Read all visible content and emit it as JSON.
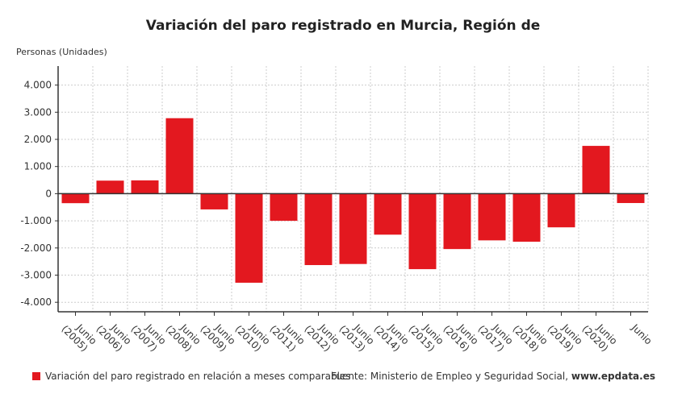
{
  "chart_data": {
    "type": "bar",
    "title": "Variación del paro registrado en Murcia, Región de",
    "ylabel": "Personas (Unidades)",
    "xlabel": "",
    "categories": [
      "Junio (2005)",
      "Junio (2006)",
      "Junio (2007)",
      "Junio (2008)",
      "Junio (2009)",
      "Junio (2010)",
      "Junio (2011)",
      "Junio (2012)",
      "Junio (2013)",
      "Junio (2014)",
      "Junio (2015)",
      "Junio (2016)",
      "Junio (2017)",
      "Junio (2018)",
      "Junio (2019)",
      "Junio (2020)",
      "Junio"
    ],
    "category_lines": [
      [
        "Junio",
        "(2005)"
      ],
      [
        "Junio",
        "(2006)"
      ],
      [
        "Junio",
        "(2007)"
      ],
      [
        "Junio",
        "(2008)"
      ],
      [
        "Junio",
        "(2009)"
      ],
      [
        "Junio",
        "(2010)"
      ],
      [
        "Junio",
        "(2011)"
      ],
      [
        "Junio",
        "(2012)"
      ],
      [
        "Junio",
        "(2013)"
      ],
      [
        "Junio",
        "(2014)"
      ],
      [
        "Junio",
        "(2015)"
      ],
      [
        "Junio",
        "(2016)"
      ],
      [
        "Junio",
        "(2017)"
      ],
      [
        "Junio",
        "(2018)"
      ],
      [
        "Junio",
        "(2019)"
      ],
      [
        "Junio",
        "(2020)"
      ],
      [
        "Junio",
        ""
      ]
    ],
    "series": [
      {
        "name": "Variación del paro registrado en relación a meses comparables",
        "color": "#e3181f",
        "values": [
          -350,
          480,
          490,
          2780,
          -580,
          -3280,
          -1000,
          -2630,
          -2590,
          -1510,
          -2780,
          -2040,
          -1720,
          -1770,
          -1240,
          1760,
          -345
        ]
      }
    ],
    "ylim": [
      -4350,
      4700
    ],
    "yticks": [
      4000,
      3000,
      2000,
      1000,
      0,
      -1000,
      -2000,
      -3000,
      -4000
    ],
    "ytick_labels": [
      "4.000",
      "3.000",
      "2.000",
      "1.000",
      "0",
      "-1.000",
      "-2.000",
      "-3.000",
      "-4.000"
    ],
    "grid": true,
    "legend_position": "bottom-left"
  },
  "source": {
    "prefix": "Fuente: Ministerio de Empleo y Seguridad Social, ",
    "site": "www.epdata.es"
  }
}
